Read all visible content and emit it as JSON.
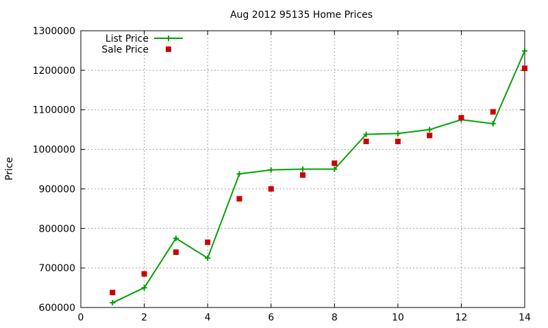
{
  "chart_data": {
    "type": "line",
    "title": "Aug 2012 95135 Home Prices",
    "xlabel": "",
    "ylabel": "Price",
    "xlim": [
      0,
      14
    ],
    "ylim": [
      600000,
      1300000
    ],
    "xticks": [
      0,
      2,
      4,
      6,
      8,
      10,
      12,
      14
    ],
    "yticks": [
      600000,
      700000,
      800000,
      900000,
      1000000,
      1100000,
      1200000,
      1300000
    ],
    "grid": true,
    "legend_position": "top-left",
    "series": [
      {
        "name": "List Price",
        "style": "line+cross",
        "color": "#00a000",
        "x": [
          1,
          2,
          3,
          4,
          5,
          6,
          7,
          8,
          9,
          10,
          11,
          12,
          13,
          14
        ],
        "values": [
          612000,
          650000,
          775000,
          725000,
          938000,
          948000,
          950000,
          950000,
          1038000,
          1040000,
          1050000,
          1075000,
          1065000,
          1249000
        ]
      },
      {
        "name": "Sale Price",
        "style": "square",
        "color": "#cc0000",
        "x": [
          1,
          2,
          3,
          4,
          5,
          6,
          7,
          8,
          9,
          10,
          11,
          12,
          13,
          14
        ],
        "values": [
          638000,
          685000,
          740000,
          765000,
          875000,
          900000,
          935000,
          965000,
          1020000,
          1020000,
          1035000,
          1080000,
          1095000,
          1205000
        ]
      }
    ]
  }
}
